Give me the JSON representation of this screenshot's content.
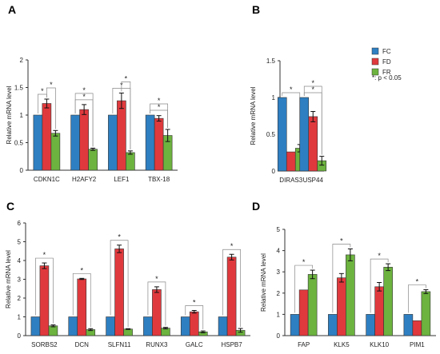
{
  "legend": {
    "items": [
      {
        "label": "FC",
        "color": "#2e7fc2"
      },
      {
        "label": "FD",
        "color": "#e0393d"
      },
      {
        "label": "FR",
        "color": "#6cb33f"
      }
    ],
    "note": "*: p < 0.05"
  },
  "chart_data": [
    {
      "panel": "A",
      "type": "bar",
      "ylabel": "Relative mRNA  level",
      "ylim": [
        0,
        2
      ],
      "yticks": [
        "0",
        "0.5",
        "1",
        "1.5",
        "2"
      ],
      "categories": [
        "CDKN1C",
        "H2AFY2",
        "LEF1",
        "TBX-18"
      ],
      "series": [
        {
          "name": "FC",
          "values": [
            1.0,
            1.0,
            1.0,
            1.0
          ],
          "err": [
            0,
            0,
            0,
            0
          ]
        },
        {
          "name": "FD",
          "values": [
            1.21,
            1.1,
            1.26,
            0.94
          ],
          "err": [
            0.08,
            0.09,
            0.14,
            0.05
          ]
        },
        {
          "name": "FR",
          "values": [
            0.67,
            0.38,
            0.32,
            0.63
          ],
          "err": [
            0.05,
            0.02,
            0.03,
            0.11
          ]
        }
      ],
      "significance": [
        [
          1,
          3,
          3,
          3
        ],
        [
          2,
          3,
          2,
          3
        ]
      ],
      "sig_mark": "*"
    },
    {
      "panel": "B",
      "type": "bar",
      "ylabel": "Relative mRNA  level",
      "ylim": [
        0,
        1.5
      ],
      "yticks": [
        "0",
        "0.5",
        "1",
        "1.5"
      ],
      "categories": [
        "DIRAS3",
        "USP44"
      ],
      "series": [
        {
          "name": "FC",
          "values": [
            1.0,
            1.0
          ],
          "err": [
            0,
            0
          ]
        },
        {
          "name": "FD",
          "values": [
            0.26,
            0.74
          ],
          "err": [
            0,
            0.07
          ]
        },
        {
          "name": "FR",
          "values": [
            0.31,
            0.14
          ],
          "err": [
            0.05,
            0.06
          ]
        }
      ],
      "significance": [
        [
          2,
          3
        ],
        [
          0,
          3
        ]
      ],
      "sig_mark": "*"
    },
    {
      "panel": "C",
      "type": "bar",
      "ylabel": "Relative mRNA  level",
      "ylim": [
        0,
        6
      ],
      "yticks": [
        "0",
        "1",
        "2",
        "3",
        "4",
        "5",
        "6"
      ],
      "categories": [
        "SORBS2",
        "DCN",
        "SLFN11",
        "RUNX3",
        "GALC",
        "HSPB7"
      ],
      "series": [
        {
          "name": "FC",
          "values": [
            1.0,
            1.0,
            1.0,
            1.0,
            1.0,
            1.0
          ],
          "err": [
            0,
            0,
            0,
            0,
            0,
            0
          ]
        },
        {
          "name": "FD",
          "values": [
            3.72,
            3.02,
            4.62,
            2.45,
            1.27,
            4.18
          ],
          "err": [
            0.15,
            0.03,
            0.2,
            0.15,
            0.07,
            0.15
          ]
        },
        {
          "name": "FR",
          "values": [
            0.52,
            0.32,
            0.35,
            0.4,
            0.2,
            0.28
          ],
          "err": [
            0.05,
            0.05,
            0.02,
            0.04,
            0.05,
            0.1
          ]
        }
      ],
      "significance": [
        [
          3,
          3,
          3,
          3,
          3,
          3
        ]
      ],
      "sig_mark": "*"
    },
    {
      "panel": "D",
      "type": "bar",
      "ylabel": "Relative mRNA  level",
      "ylim": [
        0,
        5
      ],
      "yticks": [
        "0",
        "1",
        "2",
        "3",
        "4",
        "5"
      ],
      "categories": [
        "FAP",
        "KLK5",
        "KLK10",
        "PIM1"
      ],
      "series": [
        {
          "name": "FC",
          "values": [
            1.0,
            1.0,
            1.0,
            1.0
          ],
          "err": [
            0,
            0,
            0,
            0
          ]
        },
        {
          "name": "FD",
          "values": [
            2.15,
            2.72,
            2.3,
            0.7
          ],
          "err": [
            0,
            0.2,
            0.2,
            0
          ]
        },
        {
          "name": "FR",
          "values": [
            2.88,
            3.8,
            3.22,
            2.07
          ],
          "err": [
            0.2,
            0.28,
            0.16,
            0.09
          ]
        }
      ],
      "significance": [
        [
          3,
          3,
          3,
          3
        ]
      ],
      "sig_mark": "*"
    }
  ]
}
